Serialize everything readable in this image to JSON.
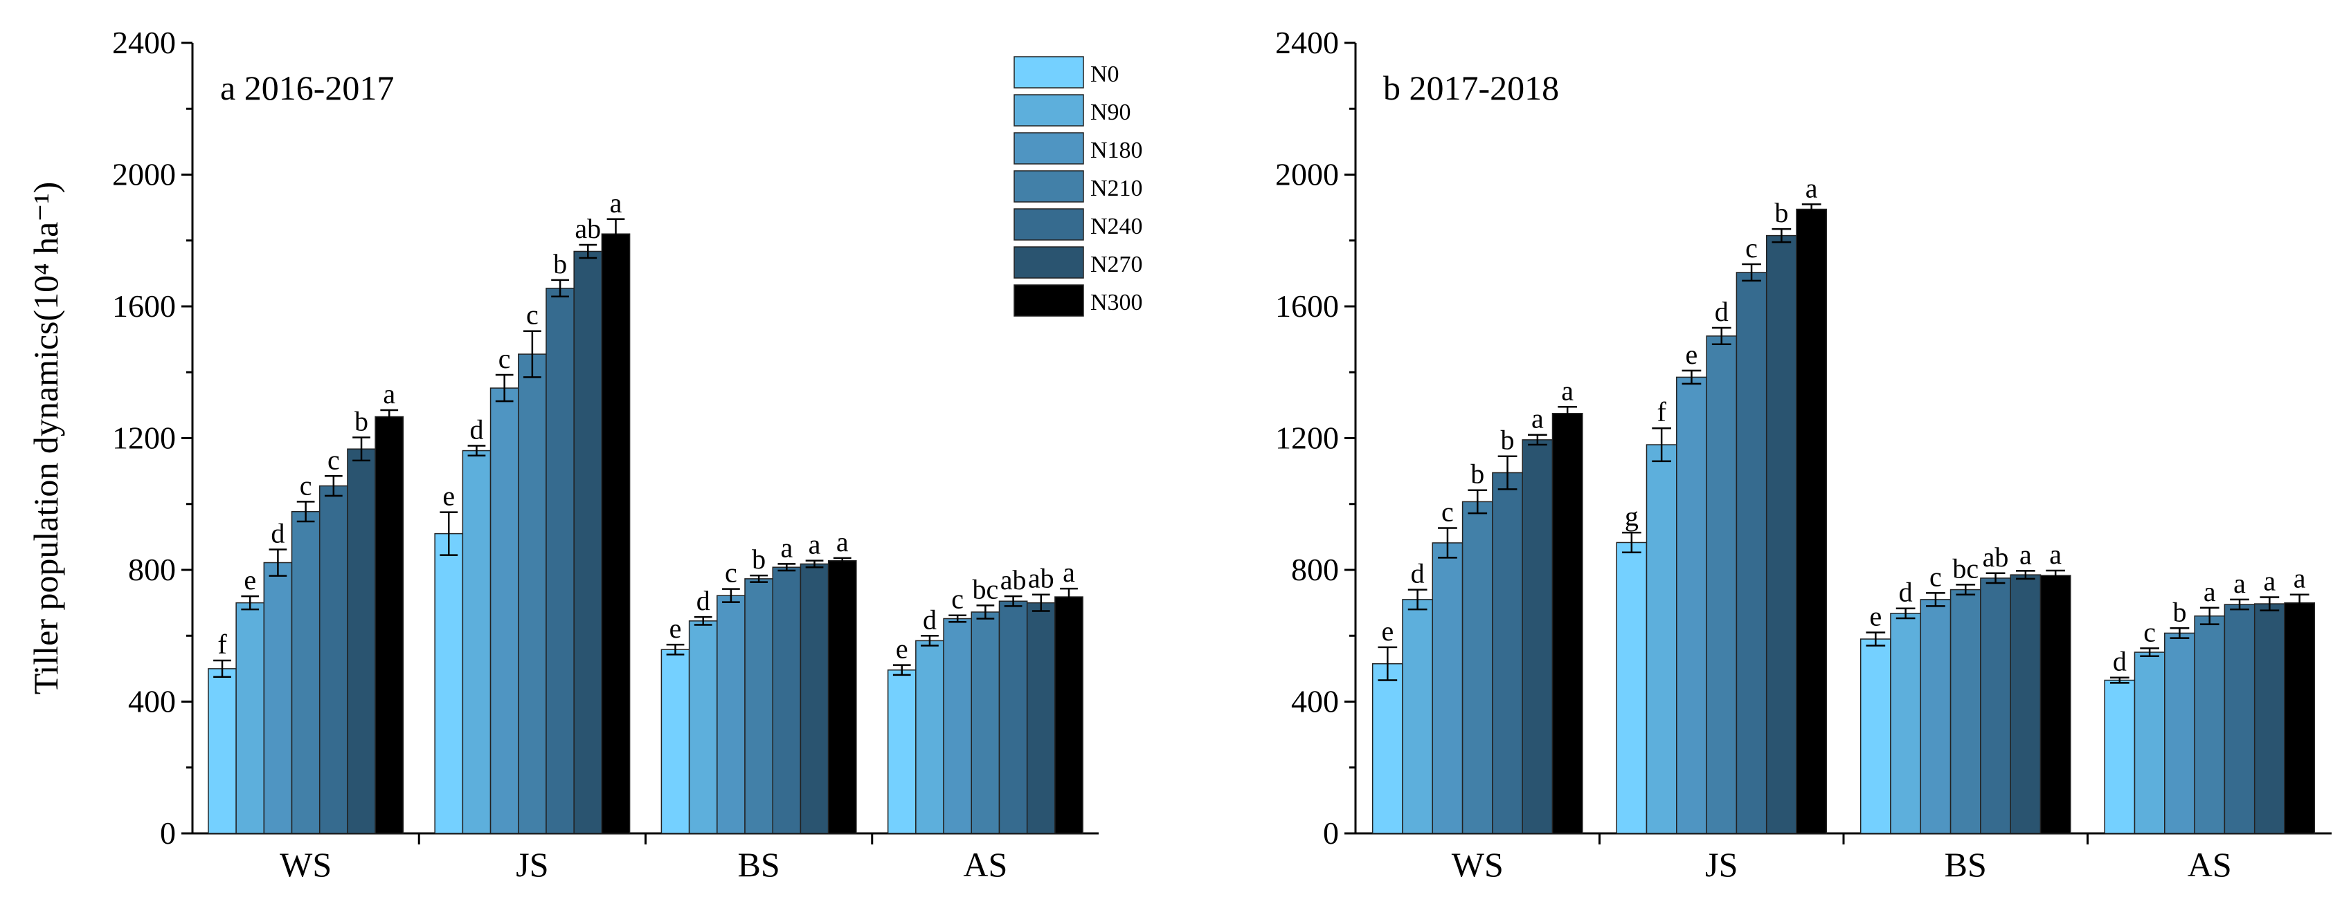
{
  "chart_data": [
    {
      "type": "bar",
      "title": "a 2016-2017",
      "ylabel": "Tiller population dynamics(10⁴ ha⁻¹)",
      "xlabel": "",
      "ylim": [
        0,
        2400
      ],
      "yticks": [
        0,
        400,
        800,
        1200,
        1600,
        2000,
        2400
      ],
      "categories": [
        "WS",
        "JS",
        "BS",
        "AS"
      ],
      "legend_position": "top-right",
      "series": [
        {
          "name": "N0",
          "values": [
            500,
            910,
            558,
            496
          ],
          "errors": [
            25,
            65,
            15,
            15
          ],
          "labels": [
            "f",
            "e",
            "e",
            "e"
          ]
        },
        {
          "name": "N90",
          "values": [
            700,
            1162,
            645,
            585
          ],
          "errors": [
            20,
            15,
            12,
            15
          ],
          "labels": [
            "e",
            "d",
            "d",
            "d"
          ]
        },
        {
          "name": "N180",
          "values": [
            822,
            1352,
            722,
            652
          ],
          "errors": [
            40,
            40,
            20,
            10
          ],
          "labels": [
            "d",
            "c",
            "c",
            "c"
          ]
        },
        {
          "name": "N210",
          "values": [
            977,
            1455,
            773,
            672
          ],
          "errors": [
            30,
            70,
            10,
            20
          ],
          "labels": [
            "c",
            "c",
            "b",
            "bc"
          ]
        },
        {
          "name": "N240",
          "values": [
            1055,
            1655,
            808,
            705
          ],
          "errors": [
            30,
            25,
            10,
            15
          ],
          "labels": [
            "c",
            "b",
            "a",
            "ab"
          ]
        },
        {
          "name": "N270",
          "values": [
            1167,
            1767,
            818,
            700
          ],
          "errors": [
            35,
            20,
            10,
            25
          ],
          "labels": [
            "b",
            "ab",
            "a",
            "ab"
          ]
        },
        {
          "name": "N300",
          "values": [
            1265,
            1820,
            828,
            718
          ],
          "errors": [
            20,
            45,
            8,
            25
          ],
          "labels": [
            "a",
            "a",
            "a",
            "a"
          ]
        }
      ]
    },
    {
      "type": "bar",
      "title": "b 2017-2018",
      "ylabel": "",
      "xlabel": "",
      "ylim": [
        0,
        2400
      ],
      "yticks": [
        0,
        400,
        800,
        1200,
        1600,
        2000,
        2400
      ],
      "categories": [
        "WS",
        "JS",
        "BS",
        "AS"
      ],
      "series": [
        {
          "name": "N0",
          "values": [
            515,
            883,
            590,
            465
          ],
          "errors": [
            50,
            30,
            20,
            8
          ],
          "labels": [
            "e",
            "g",
            "e",
            "d"
          ]
        },
        {
          "name": "N90",
          "values": [
            710,
            1180,
            668,
            550
          ],
          "errors": [
            30,
            50,
            15,
            12
          ],
          "labels": [
            "d",
            "f",
            "d",
            "c"
          ]
        },
        {
          "name": "N180",
          "values": [
            882,
            1385,
            710,
            608
          ],
          "errors": [
            45,
            20,
            20,
            15
          ],
          "labels": [
            "c",
            "e",
            "c",
            "b"
          ]
        },
        {
          "name": "N210",
          "values": [
            1007,
            1510,
            740,
            660
          ],
          "errors": [
            35,
            25,
            15,
            25
          ],
          "labels": [
            "b",
            "d",
            "bc",
            "a"
          ]
        },
        {
          "name": "N240",
          "values": [
            1095,
            1703,
            775,
            695
          ],
          "errors": [
            50,
            25,
            15,
            15
          ],
          "labels": [
            "b",
            "c",
            "ab",
            "a"
          ]
        },
        {
          "name": "N270",
          "values": [
            1195,
            1815,
            785,
            697
          ],
          "errors": [
            15,
            20,
            12,
            20
          ],
          "labels": [
            "a",
            "b",
            "a",
            "a"
          ]
        },
        {
          "name": "N300",
          "values": [
            1275,
            1895,
            783,
            700
          ],
          "errors": [
            20,
            15,
            15,
            25
          ],
          "labels": [
            "a",
            "a",
            "a",
            "a"
          ]
        }
      ]
    }
  ],
  "colors": [
    "#74d0ff",
    "#5dafdc",
    "#4f95c2",
    "#4280a8",
    "#366b8f",
    "#2a5470",
    "#000000"
  ]
}
